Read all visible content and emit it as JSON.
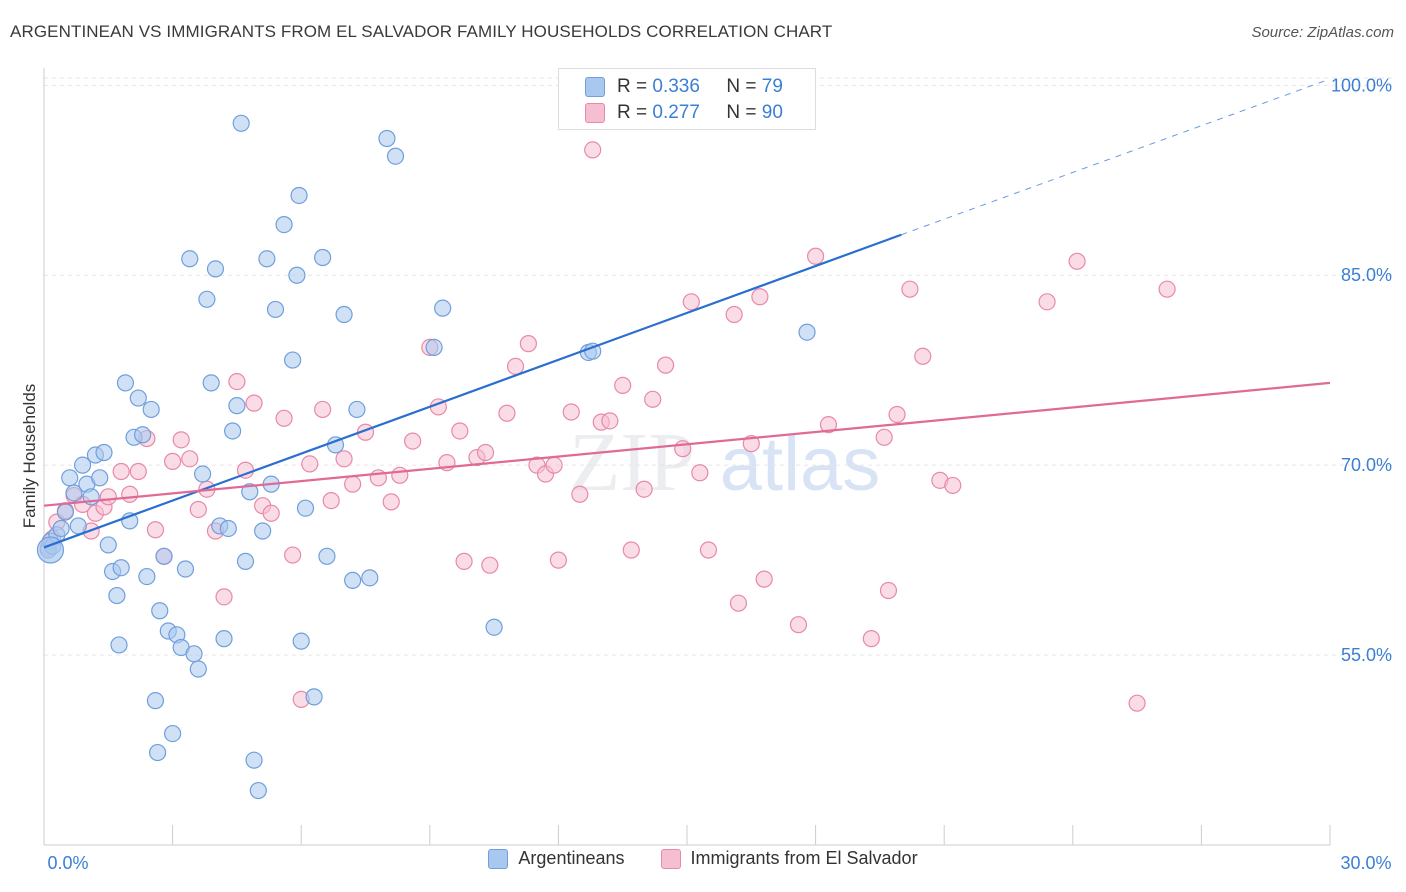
{
  "title": "ARGENTINEAN VS IMMIGRANTS FROM EL SALVADOR FAMILY HOUSEHOLDS CORRELATION CHART",
  "source": "Source: ZipAtlas.com",
  "watermark": {
    "zip": "ZIP",
    "atlas": "atlas"
  },
  "legend_top": {
    "blue": {
      "r_label": "R =",
      "r_value": "0.336",
      "n_label": "N =",
      "n_value": "79"
    },
    "pink": {
      "r_label": "R =",
      "r_value": "0.277",
      "n_label": "N =",
      "n_value": "90"
    }
  },
  "legend_bottom": {
    "blue_label": "Argentineans",
    "pink_label": "Immigrants from El Salvador"
  },
  "colors": {
    "blue_fill": "#a9c8ef",
    "blue_stroke": "#6f9fdc",
    "blue_line": "#2a6fd0",
    "pink_fill": "#f6bfd1",
    "pink_stroke": "#e889a8",
    "pink_line": "#e06a96",
    "tick_label": "#3b7fd4",
    "grid": "#e6e6e6"
  },
  "chart_data": {
    "type": "scatter",
    "xlabel": "",
    "ylabel": "Family Households",
    "x_range": [
      0,
      30
    ],
    "y_range": [
      40,
      102
    ],
    "x_tick_labels": {
      "min": "0.0%",
      "max": "30.0%"
    },
    "y_ticks": [
      {
        "value": 55,
        "label": "55.0%"
      },
      {
        "value": 70,
        "label": "70.0%"
      },
      {
        "value": 85,
        "label": "85.0%"
      },
      {
        "value": 100,
        "label": "100.0%"
      }
    ],
    "series": [
      {
        "name": "Argentineans",
        "r": 0.336,
        "n": 79,
        "trend": {
          "x0": 0,
          "y0": 63.5,
          "x1": 20,
          "y1": 88.2,
          "dash_to_x": 30,
          "dash_to_y": 100.5
        },
        "points": [
          [
            0.1,
            63.3
          ],
          [
            0.15,
            64
          ],
          [
            0.2,
            63.6
          ],
          [
            0.3,
            64.5
          ],
          [
            0.4,
            65
          ],
          [
            0.5,
            66.3
          ],
          [
            0.6,
            69
          ],
          [
            0.7,
            67.8
          ],
          [
            0.8,
            65.2
          ],
          [
            0.9,
            70
          ],
          [
            1.0,
            68.5
          ],
          [
            1.1,
            67.5
          ],
          [
            1.2,
            70.8
          ],
          [
            1.3,
            69
          ],
          [
            1.4,
            71
          ],
          [
            1.5,
            63.7
          ],
          [
            1.6,
            61.6
          ],
          [
            1.7,
            59.7
          ],
          [
            1.75,
            55.8
          ],
          [
            1.8,
            61.9
          ],
          [
            1.9,
            76.5
          ],
          [
            2.0,
            65.6
          ],
          [
            2.1,
            72.2
          ],
          [
            2.2,
            75.3
          ],
          [
            2.3,
            72.4
          ],
          [
            2.4,
            61.2
          ],
          [
            2.5,
            74.4
          ],
          [
            2.6,
            51.4
          ],
          [
            2.65,
            47.3
          ],
          [
            2.7,
            58.5
          ],
          [
            2.8,
            62.8
          ],
          [
            2.9,
            56.9
          ],
          [
            3.0,
            48.8
          ],
          [
            3.1,
            56.6
          ],
          [
            3.2,
            55.6
          ],
          [
            3.3,
            61.8
          ],
          [
            3.4,
            86.3
          ],
          [
            3.5,
            55.1
          ],
          [
            3.6,
            53.9
          ],
          [
            3.7,
            69.3
          ],
          [
            3.8,
            83.1
          ],
          [
            3.9,
            76.5
          ],
          [
            4.0,
            85.5
          ],
          [
            4.1,
            65.2
          ],
          [
            4.2,
            56.3
          ],
          [
            4.3,
            65
          ],
          [
            4.4,
            72.7
          ],
          [
            4.5,
            74.7
          ],
          [
            4.6,
            97
          ],
          [
            4.7,
            62.4
          ],
          [
            4.8,
            67.9
          ],
          [
            4.9,
            46.7
          ],
          [
            5.0,
            44.3
          ],
          [
            5.1,
            64.8
          ],
          [
            5.2,
            86.3
          ],
          [
            5.3,
            68.5
          ],
          [
            5.4,
            82.3
          ],
          [
            5.6,
            89
          ],
          [
            5.8,
            78.3
          ],
          [
            5.9,
            85
          ],
          [
            5.95,
            91.3
          ],
          [
            6.0,
            56.1
          ],
          [
            6.1,
            66.6
          ],
          [
            6.3,
            51.7
          ],
          [
            6.5,
            86.4
          ],
          [
            6.6,
            62.8
          ],
          [
            6.8,
            71.6
          ],
          [
            7.0,
            81.9
          ],
          [
            7.2,
            60.9
          ],
          [
            7.3,
            74.4
          ],
          [
            7.6,
            61.1
          ],
          [
            8.0,
            95.8
          ],
          [
            8.2,
            94.4
          ],
          [
            9.1,
            79.3
          ],
          [
            9.3,
            82.4
          ],
          [
            10.5,
            57.2
          ],
          [
            12.7,
            78.9
          ],
          [
            12.8,
            79
          ],
          [
            17.8,
            80.5
          ]
        ]
      },
      {
        "name": "Immigrants from El Salvador",
        "r": 0.277,
        "n": 90,
        "trend": {
          "x0": 0,
          "y0": 66.8,
          "x1": 30,
          "y1": 76.5
        },
        "points": [
          [
            0.1,
            63.5
          ],
          [
            0.2,
            64.2
          ],
          [
            0.3,
            65.5
          ],
          [
            0.5,
            66.4
          ],
          [
            0.7,
            67.6
          ],
          [
            0.9,
            66.9
          ],
          [
            1.1,
            64.8
          ],
          [
            1.2,
            66.2
          ],
          [
            1.4,
            66.7
          ],
          [
            1.5,
            67.5
          ],
          [
            1.8,
            69.5
          ],
          [
            2.0,
            67.7
          ],
          [
            2.2,
            69.5
          ],
          [
            2.4,
            72.1
          ],
          [
            2.6,
            64.9
          ],
          [
            2.8,
            62.8
          ],
          [
            3.0,
            70.3
          ],
          [
            3.2,
            72
          ],
          [
            3.4,
            70.5
          ],
          [
            3.6,
            66.5
          ],
          [
            3.8,
            68.1
          ],
          [
            4.0,
            64.8
          ],
          [
            4.2,
            59.6
          ],
          [
            4.5,
            76.6
          ],
          [
            4.7,
            69.6
          ],
          [
            4.9,
            74.9
          ],
          [
            5.1,
            66.8
          ],
          [
            5.3,
            66.2
          ],
          [
            5.6,
            73.7
          ],
          [
            5.8,
            62.9
          ],
          [
            6.0,
            51.5
          ],
          [
            6.2,
            70.1
          ],
          [
            6.5,
            74.4
          ],
          [
            6.7,
            67.2
          ],
          [
            7.0,
            70.5
          ],
          [
            7.2,
            68.5
          ],
          [
            7.5,
            72.6
          ],
          [
            7.8,
            69
          ],
          [
            8.1,
            67.1
          ],
          [
            8.3,
            69.2
          ],
          [
            8.6,
            71.9
          ],
          [
            9.0,
            79.3
          ],
          [
            9.2,
            74.6
          ],
          [
            9.4,
            70.2
          ],
          [
            9.7,
            72.7
          ],
          [
            9.8,
            62.4
          ],
          [
            10.1,
            70.6
          ],
          [
            10.3,
            71
          ],
          [
            10.4,
            62.1
          ],
          [
            10.8,
            74.1
          ],
          [
            11.0,
            77.8
          ],
          [
            11.3,
            79.6
          ],
          [
            11.5,
            70
          ],
          [
            11.7,
            69.3
          ],
          [
            11.9,
            70
          ],
          [
            12.0,
            62.5
          ],
          [
            12.3,
            74.2
          ],
          [
            12.5,
            67.7
          ],
          [
            12.8,
            94.9
          ],
          [
            13.0,
            73.4
          ],
          [
            13.2,
            73.5
          ],
          [
            13.5,
            76.3
          ],
          [
            13.7,
            63.3
          ],
          [
            14.0,
            68.1
          ],
          [
            14.2,
            75.2
          ],
          [
            14.5,
            77.9
          ],
          [
            14.9,
            71.3
          ],
          [
            15.1,
            82.9
          ],
          [
            15.3,
            69.4
          ],
          [
            15.5,
            63.3
          ],
          [
            16.1,
            81.9
          ],
          [
            16.2,
            59.1
          ],
          [
            16.5,
            71.7
          ],
          [
            16.7,
            83.3
          ],
          [
            16.8,
            61
          ],
          [
            17.6,
            57.4
          ],
          [
            18.0,
            86.5
          ],
          [
            18.3,
            73.2
          ],
          [
            19.3,
            56.3
          ],
          [
            19.6,
            72.2
          ],
          [
            19.7,
            60.1
          ],
          [
            19.9,
            74
          ],
          [
            20.2,
            83.9
          ],
          [
            20.5,
            78.6
          ],
          [
            20.9,
            68.8
          ],
          [
            21.2,
            68.4
          ],
          [
            23.4,
            82.9
          ],
          [
            24.1,
            86.1
          ],
          [
            25.5,
            51.2
          ],
          [
            26.2,
            83.9
          ]
        ]
      }
    ]
  }
}
